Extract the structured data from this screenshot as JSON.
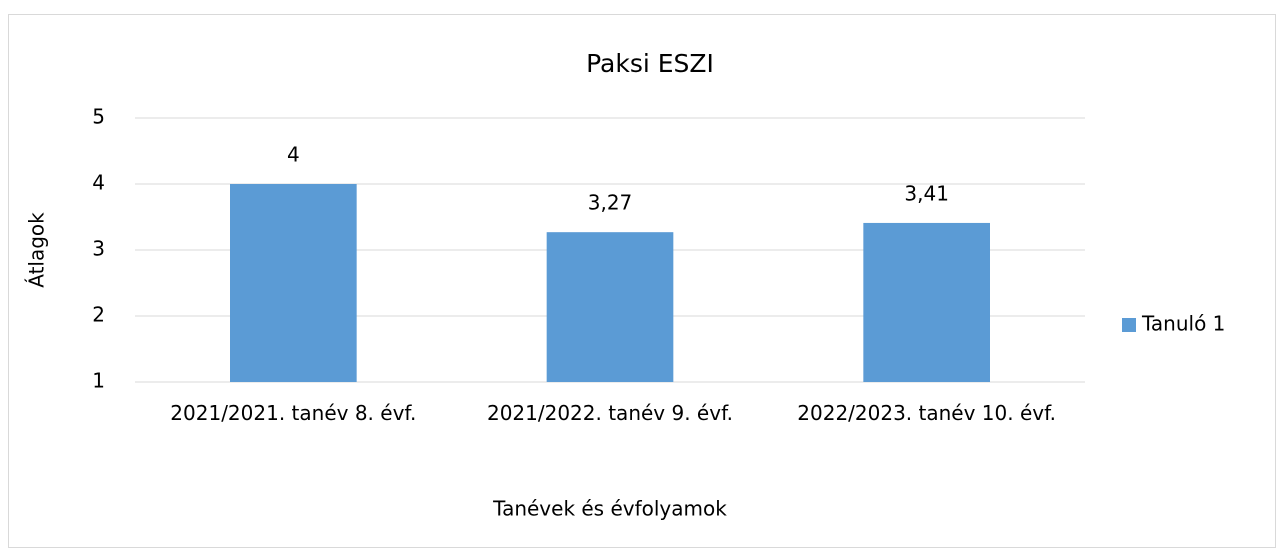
{
  "chart_data": {
    "type": "bar",
    "title": "Paksi ESZI",
    "categories": [
      "2021/2021. tanév 8. évf.",
      "2021/2022. tanév 9. évf.",
      "2022/2023. tanév 10. évf."
    ],
    "series": [
      {
        "name": "Tanuló 1",
        "color": "#5b9bd5",
        "values": [
          4,
          3.27,
          3.41
        ],
        "value_labels": [
          "4",
          "3,27",
          "3,41"
        ]
      }
    ],
    "x_label": "Tanévek és évfolyamok",
    "y_label": "Átlagok",
    "ylim": [
      1,
      5
    ],
    "yticks": [
      1,
      2,
      3,
      4,
      5
    ],
    "grid": true,
    "legend": "right"
  }
}
